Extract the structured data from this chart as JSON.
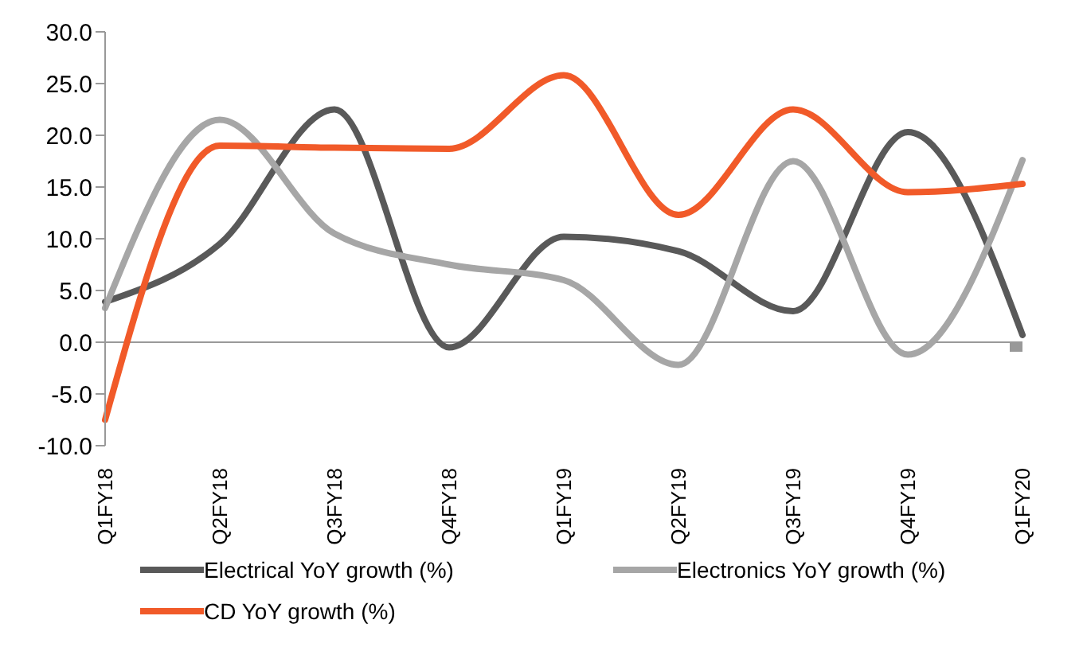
{
  "chart_data": {
    "type": "line",
    "categories": [
      "Q1FY18",
      "Q2FY18",
      "Q3FY18",
      "Q4FY18",
      "Q1FY19",
      "Q2FY19",
      "Q3FY19",
      "Q4FY19",
      "Q1FY20"
    ],
    "series": [
      {
        "name": "Electrical YoY growth (%)",
        "color": "#595959",
        "values": [
          3.9,
          9.5,
          22.5,
          -0.5,
          10.2,
          8.8,
          3.0,
          20.3,
          0.7
        ]
      },
      {
        "name": "Electronics YoY growth (%)",
        "color": "#a6a6a6",
        "values": [
          3.3,
          21.5,
          10.5,
          7.5,
          6.0,
          -2.2,
          17.5,
          -1.2,
          17.6
        ]
      },
      {
        "name": "CD YoY growth (%)",
        "color": "#f15a29",
        "values": [
          -7.5,
          19.0,
          18.8,
          18.7,
          25.8,
          12.3,
          22.5,
          14.5,
          15.3
        ]
      }
    ],
    "ylim": [
      -10,
      30
    ],
    "yticks": [
      {
        "value": -10,
        "label": "-10.0"
      },
      {
        "value": -5,
        "label": "-5.0"
      },
      {
        "value": 0,
        "label": "0.0"
      },
      {
        "value": 5,
        "label": "5.0"
      },
      {
        "value": 10,
        "label": "10.0"
      },
      {
        "value": 15,
        "label": "15.0"
      },
      {
        "value": 20,
        "label": "20.0"
      },
      {
        "value": 25,
        "label": "25.0"
      },
      {
        "value": 30,
        "label": "30.0"
      }
    ],
    "grid": false,
    "legend": "bottom",
    "marker": "none",
    "line_style": "solid"
  }
}
